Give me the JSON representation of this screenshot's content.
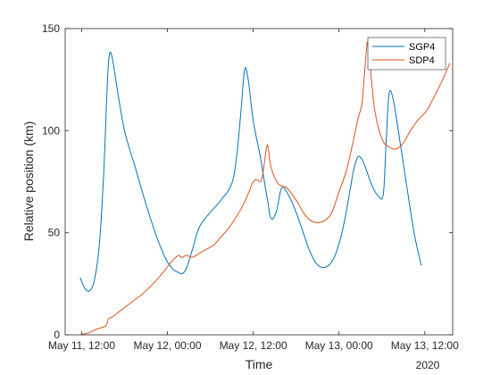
{
  "chart_data": {
    "type": "line",
    "title": "",
    "xlabel": "Time",
    "ylabel": "Relative position (km)",
    "x_secondary_label": "2020",
    "x_unit": "hours",
    "x_ticks": [
      {
        "label": "May 11, 12:00",
        "value": 0
      },
      {
        "label": "May 12, 00:00",
        "value": 12
      },
      {
        "label": "May 12, 12:00",
        "value": 24
      },
      {
        "label": "May 13, 00:00",
        "value": 36
      },
      {
        "label": "May 13, 12:00",
        "value": 48
      }
    ],
    "xlim": [
      -2.3,
      51.9
    ],
    "ylim": [
      0,
      150
    ],
    "y_ticks": [
      0,
      50,
      100,
      150
    ],
    "grid": false,
    "legend_position": "top-right",
    "colors": {
      "SGP4": "#0072BD",
      "SDP4": "#D95319",
      "axis": "#262626"
    },
    "series": [
      {
        "name": "SGP4",
        "x": [
          -0.2,
          0.4,
          1.1,
          1.8,
          2.5,
          3.1,
          3.5,
          3.8,
          4.2,
          5.0,
          6.0,
          7.5,
          9.0,
          10.5,
          11.8,
          12.8,
          13.3,
          13.8,
          14.1,
          14.3,
          14.5,
          14.7,
          15.0,
          15.6,
          16.5,
          18.0,
          19.5,
          21.0,
          21.7,
          22.3,
          22.8,
          23.3,
          24.0,
          25.0,
          25.7,
          26.1,
          26.3,
          26.5,
          26.8,
          27.3,
          28.0,
          29.0,
          30.0,
          31.0,
          31.8,
          32.8,
          34.0,
          35.2,
          36.2,
          37.0,
          37.6,
          38.0,
          38.3,
          38.6,
          39.0,
          39.6,
          40.5,
          41.5,
          42.2,
          42.6,
          43.0,
          43.6,
          44.6,
          45.6,
          46.5,
          47.5
        ],
        "y": [
          28,
          23,
          21.5,
          27,
          45,
          80,
          115,
          135,
          137,
          120,
          100,
          82,
          64,
          48,
          37,
          32,
          31,
          30,
          30,
          30.5,
          31.5,
          33,
          36,
          43,
          53,
          60,
          66,
          74,
          88,
          110,
          130,
          125,
          105,
          87,
          72,
          64,
          59,
          57,
          57,
          61,
          72,
          68,
          60,
          50,
          42,
          35,
          33,
          37,
          47,
          60,
          72,
          80,
          84,
          87,
          87,
          83,
          74,
          68,
          69,
          95,
          118,
          115,
          93,
          70,
          50,
          34
        ],
        "x_dense": []
      },
      {
        "name": "SDP4",
        "x": [
          -0.2,
          1.0,
          2.3,
          3.2,
          3.4,
          3.6,
          3.8,
          4.4,
          5.5,
          7.0,
          8.5,
          10.0,
          11.5,
          12.6,
          13.2,
          13.6,
          13.9,
          14.2,
          14.6,
          15.5,
          16.5,
          17.5,
          18.5,
          19.5,
          20.5,
          21.5,
          22.5,
          23.4,
          24.0,
          24.5,
          25.0,
          25.3,
          25.6,
          26.0,
          26.5,
          27.5,
          28.7,
          30.0,
          31.0,
          32.0,
          33.0,
          34.0,
          35.0,
          36.0,
          37.0,
          38.0,
          38.6,
          39.2,
          39.5,
          39.8,
          40.0,
          40.4,
          41.0,
          42.0,
          43.0,
          44.0,
          45.0,
          46.0,
          47.0,
          48.3,
          49.5,
          50.5,
          51.5
        ],
        "y": [
          0,
          1,
          3,
          4,
          4.5,
          6,
          8,
          9,
          12,
          16,
          20,
          25,
          31,
          36,
          38,
          39,
          38,
          38,
          39,
          38,
          40,
          42,
          44,
          48,
          52,
          57,
          63,
          70,
          75,
          76,
          75,
          78,
          85,
          93,
          82,
          74,
          72,
          66,
          60,
          56,
          55,
          56,
          60,
          70,
          80,
          95,
          105,
          113,
          125,
          138,
          143,
          130,
          110,
          96,
          92,
          91,
          94,
          100,
          105,
          110,
          118,
          125,
          133
        ]
      }
    ]
  }
}
